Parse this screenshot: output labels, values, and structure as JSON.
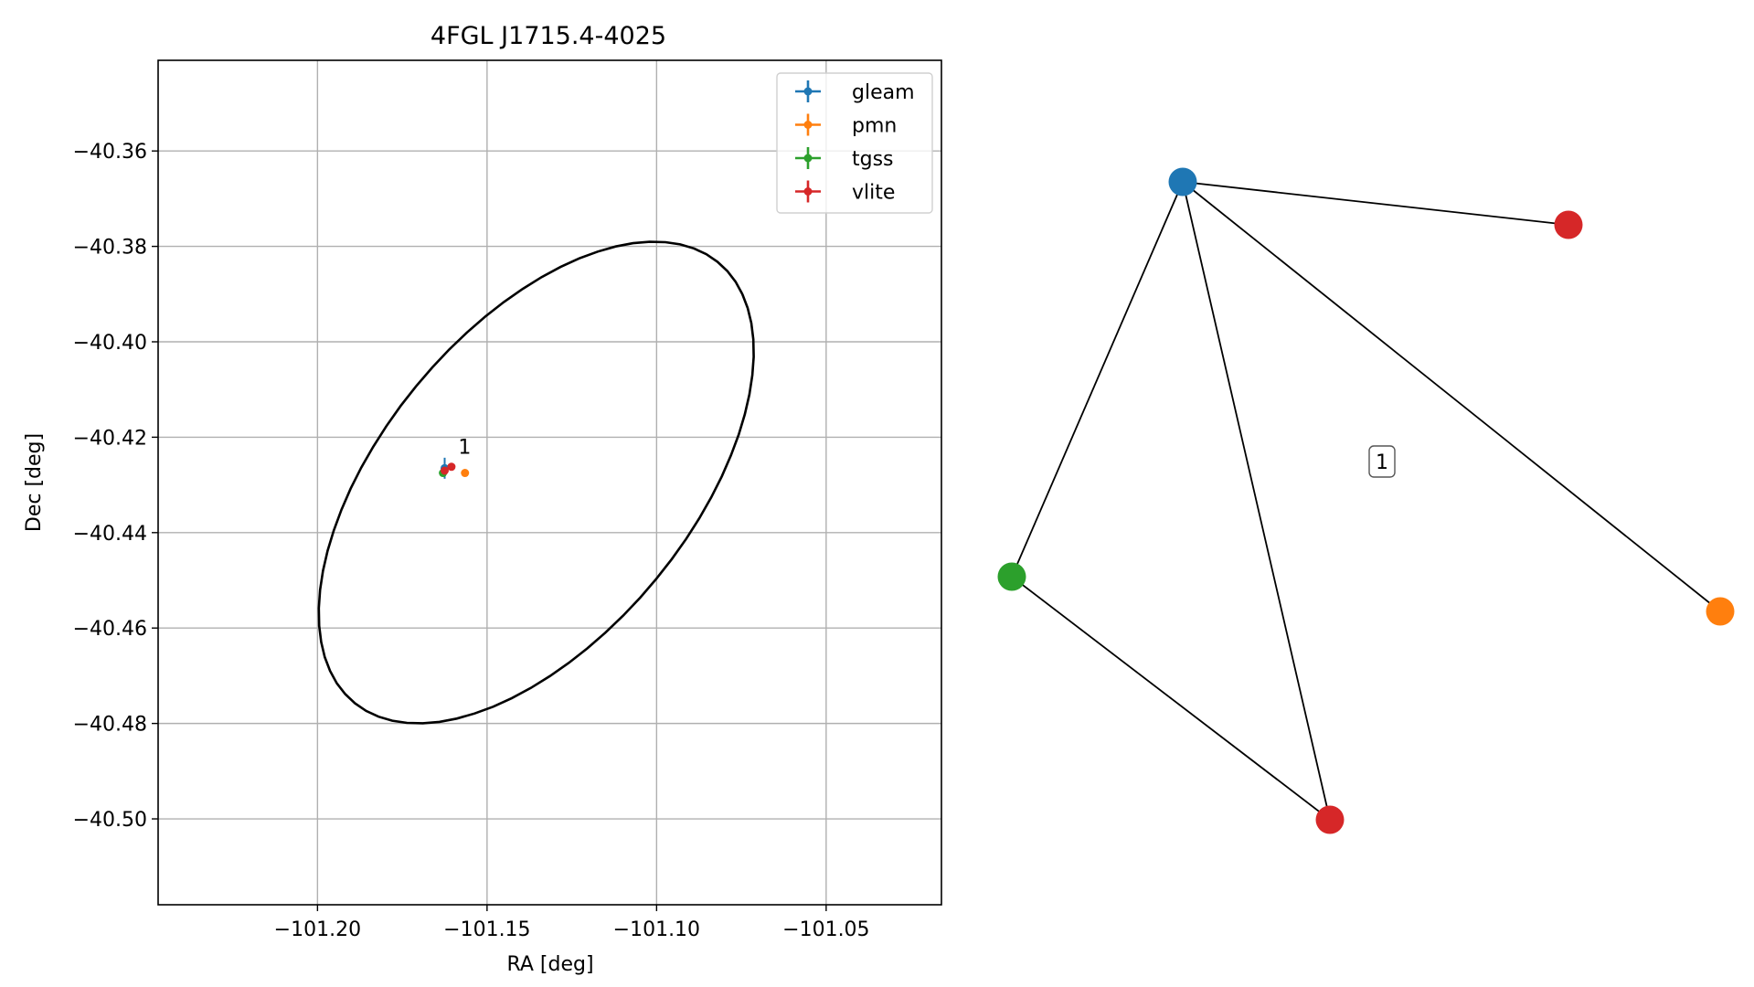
{
  "chart_data": [
    {
      "type": "scatter",
      "title": "4FGL J1715.4-4025",
      "xlabel": "RA [deg]",
      "ylabel": "Dec [deg]",
      "xlim": [
        -101.247,
        -101.016
      ],
      "ylim": [
        -40.518,
        -40.341
      ],
      "xticks": [
        -101.2,
        -101.15,
        -101.1,
        -101.05
      ],
      "xtick_labels": [
        "−101.20",
        "−101.15",
        "−101.10",
        "−101.05"
      ],
      "yticks": [
        -40.36,
        -40.38,
        -40.4,
        -40.42,
        -40.44,
        -40.46,
        -40.48,
        -40.5
      ],
      "ytick_labels": [
        "−40.36",
        "−40.38",
        "−40.40",
        "−40.42",
        "−40.44",
        "−40.46",
        "−40.48",
        "−40.50"
      ],
      "grid": true,
      "legend_position": "top-right",
      "series": [
        {
          "name": "gleam",
          "color": "#1f77b4",
          "points": [
            {
              "x": -101.1625,
              "y": -40.4265,
              "xerr": 0.0005,
              "yerr": 0.0022
            }
          ]
        },
        {
          "name": "pmn",
          "color": "#ff7f0e",
          "points": [
            {
              "x": -101.1565,
              "y": -40.4275,
              "xerr": 0.0,
              "yerr": 0.0
            }
          ]
        },
        {
          "name": "tgss",
          "color": "#2ca02c",
          "points": [
            {
              "x": -101.163,
              "y": -40.4275,
              "xerr": 0.0,
              "yerr": 0.0
            }
          ]
        },
        {
          "name": "vlite",
          "color": "#d62728",
          "points": [
            {
              "x": -101.1605,
              "y": -40.4262,
              "xerr": 0.0,
              "yerr": 0.0
            },
            {
              "x": -101.1625,
              "y": -40.427,
              "xerr": 0.0,
              "yerr": 0.0
            }
          ]
        }
      ],
      "annotations": [
        {
          "text": "1",
          "x": -101.1585,
          "y": -40.4235
        }
      ],
      "ellipse": {
        "center": [
          -101.1355,
          -40.4295
        ],
        "semi_major": 0.0725,
        "semi_minor": 0.0375,
        "angle_deg": 33,
        "color": "#000000"
      }
    },
    {
      "type": "network",
      "nodes": [
        {
          "id": "n0",
          "color": "#1f77b4"
        },
        {
          "id": "n1",
          "color": "#d62728"
        },
        {
          "id": "n2",
          "color": "#ff7f0e"
        },
        {
          "id": "n3",
          "color": "#2ca02c"
        },
        {
          "id": "n4",
          "color": "#d62728"
        }
      ],
      "edges": [
        [
          "n0",
          "n1"
        ],
        [
          "n0",
          "n2"
        ],
        [
          "n0",
          "n3"
        ],
        [
          "n0",
          "n4"
        ],
        [
          "n3",
          "n4"
        ]
      ],
      "label": "1"
    }
  ]
}
